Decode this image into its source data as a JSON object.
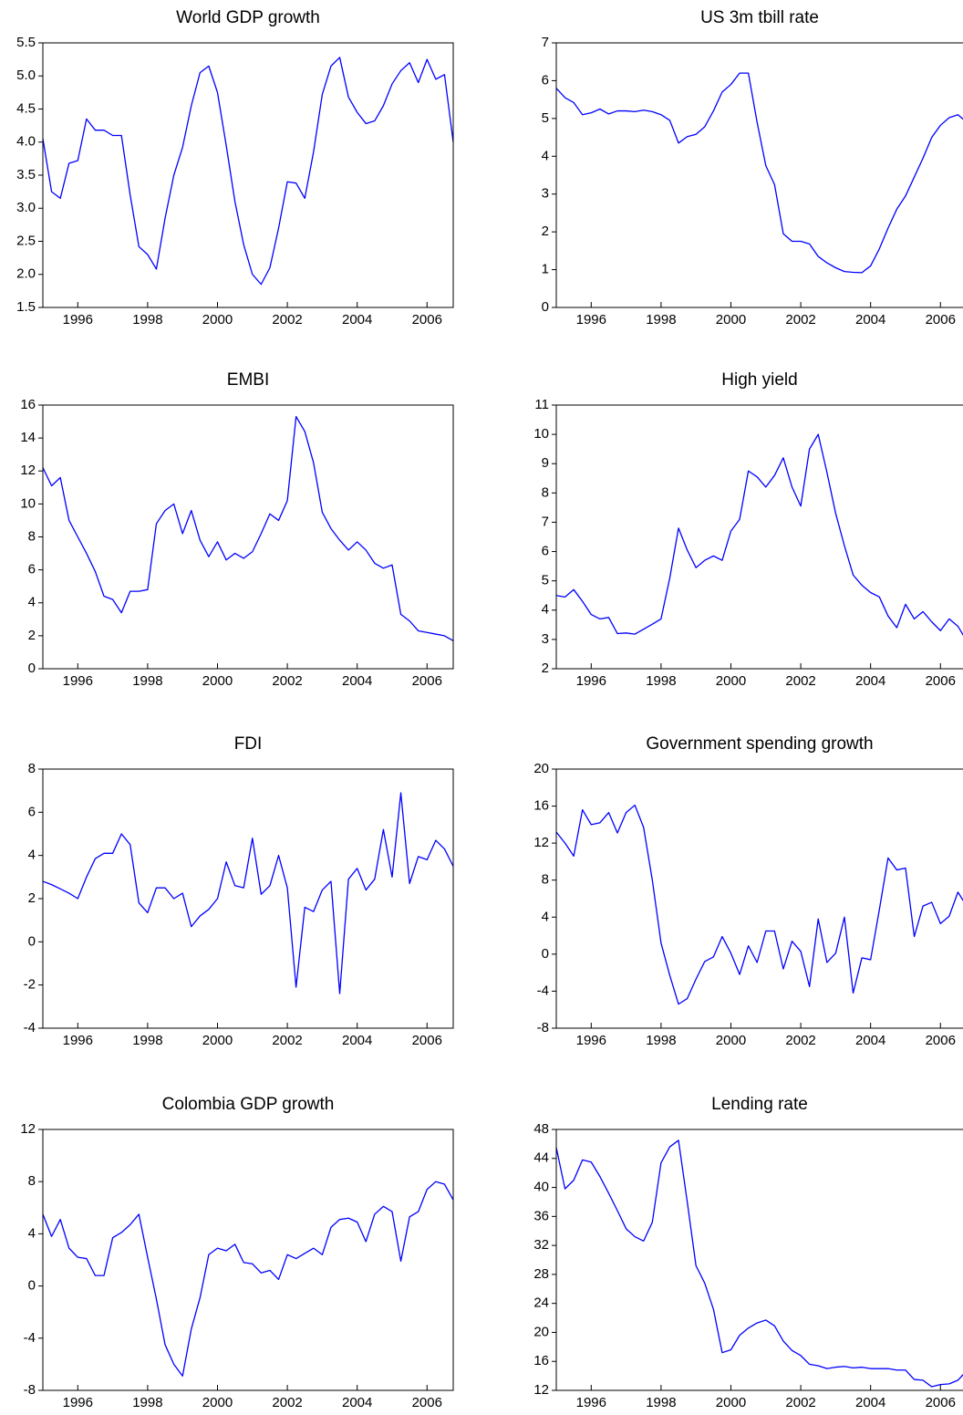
{
  "chart_data": [
    {
      "type": "line",
      "title": "World GDP growth",
      "color": "#0000ff",
      "x": [
        1995,
        1995.25,
        1995.5,
        1995.75,
        1996,
        1996.25,
        1996.5,
        1996.75,
        1997,
        1997.25,
        1997.5,
        1997.75,
        1998,
        1998.25,
        1998.5,
        1998.75,
        1999,
        1999.25,
        1999.5,
        1999.75,
        2000,
        2000.25,
        2000.5,
        2000.75,
        2001,
        2001.25,
        2001.5,
        2001.75,
        2002,
        2002.25,
        2002.5,
        2002.75,
        2003,
        2003.25,
        2003.5,
        2003.75,
        2004,
        2004.25,
        2004.5,
        2004.75,
        2005,
        2005.25,
        2005.5,
        2005.75,
        2006,
        2006.25,
        2006.5,
        2006.75
      ],
      "values": [
        4.05,
        3.25,
        3.15,
        3.68,
        3.72,
        4.35,
        4.18,
        4.18,
        4.1,
        4.1,
        3.2,
        2.42,
        2.3,
        2.08,
        2.85,
        3.5,
        3.92,
        4.55,
        5.05,
        5.15,
        4.75,
        3.95,
        3.1,
        2.45,
        2.0,
        1.85,
        2.1,
        2.7,
        3.4,
        3.38,
        3.15,
        3.85,
        4.72,
        5.15,
        5.28,
        4.68,
        4.45,
        4.28,
        4.32,
        4.55,
        4.88,
        5.08,
        5.2,
        4.9,
        5.25,
        4.95,
        5.02,
        4.0
      ],
      "xlim": [
        1995,
        2006.75
      ],
      "xticks": [
        1996,
        1998,
        2000,
        2002,
        2004,
        2006
      ],
      "ylim": [
        1.5,
        5.5
      ],
      "yticks": [
        1.5,
        {
          "value": 2,
          "label": "2.0"
        },
        2.5,
        {
          "value": 3,
          "label": "3.0"
        },
        3.5,
        {
          "value": 4,
          "label": "4.0"
        },
        4.5,
        {
          "value": 5,
          "label": "5.0"
        },
        5.5
      ]
    },
    {
      "type": "line",
      "title": "US 3m tbill rate",
      "color": "#0000ff",
      "x": [
        1995,
        1995.25,
        1995.5,
        1995.75,
        1996,
        1996.25,
        1996.5,
        1996.75,
        1997,
        1997.25,
        1997.5,
        1997.75,
        1998,
        1998.25,
        1998.5,
        1998.75,
        1999,
        1999.25,
        1999.5,
        1999.75,
        2000,
        2000.25,
        2000.5,
        2000.75,
        2001,
        2001.25,
        2001.5,
        2001.75,
        2002,
        2002.25,
        2002.5,
        2002.75,
        2003,
        2003.25,
        2003.5,
        2003.75,
        2004,
        2004.25,
        2004.5,
        2004.75,
        2005,
        2005.25,
        2005.5,
        2005.75,
        2006,
        2006.25,
        2006.5,
        2006.75
      ],
      "values": [
        5.8,
        5.55,
        5.42,
        5.1,
        5.15,
        5.25,
        5.12,
        5.2,
        5.2,
        5.18,
        5.22,
        5.18,
        5.1,
        4.95,
        4.35,
        4.52,
        4.58,
        4.78,
        5.2,
        5.7,
        5.9,
        6.2,
        6.2,
        4.9,
        3.75,
        3.25,
        1.95,
        1.75,
        1.75,
        1.68,
        1.35,
        1.18,
        1.05,
        0.95,
        0.93,
        0.92,
        1.1,
        1.55,
        2.1,
        2.6,
        2.95,
        3.45,
        3.95,
        4.5,
        4.82,
        5.02,
        5.1,
        4.9
      ],
      "xlim": [
        1995,
        2006.75
      ],
      "xticks": [
        1996,
        1998,
        2000,
        2002,
        2004,
        2006
      ],
      "ylim": [
        0,
        7
      ],
      "yticks": [
        0,
        1,
        2,
        3,
        4,
        5,
        6,
        7
      ]
    },
    {
      "type": "line",
      "title": "EMBI",
      "color": "#0000ff",
      "x": [
        1995,
        1995.25,
        1995.5,
        1995.75,
        1996,
        1996.25,
        1996.5,
        1996.75,
        1997,
        1997.25,
        1997.5,
        1997.75,
        1998,
        1998.25,
        1998.5,
        1998.75,
        1999,
        1999.25,
        1999.5,
        1999.75,
        2000,
        2000.25,
        2000.5,
        2000.75,
        2001,
        2001.25,
        2001.5,
        2001.75,
        2002,
        2002.25,
        2002.5,
        2002.75,
        2003,
        2003.25,
        2003.5,
        2003.75,
        2004,
        2004.25,
        2004.5,
        2004.75,
        2005,
        2005.25,
        2005.5,
        2005.75,
        2006,
        2006.25,
        2006.5,
        2006.75
      ],
      "values": [
        12.2,
        11.1,
        11.6,
        9.0,
        8.0,
        7.0,
        5.9,
        4.4,
        4.2,
        3.4,
        4.7,
        4.7,
        4.8,
        8.8,
        9.6,
        10.0,
        8.2,
        9.6,
        7.8,
        6.8,
        7.7,
        6.6,
        7.0,
        6.7,
        7.1,
        8.2,
        9.4,
        9.0,
        10.2,
        15.3,
        14.4,
        12.5,
        9.5,
        8.5,
        7.8,
        7.2,
        7.7,
        7.2,
        6.4,
        6.1,
        6.3,
        3.3,
        2.9,
        2.3,
        2.2,
        2.1,
        2.0,
        1.7
      ],
      "xlim": [
        1995,
        2006.75
      ],
      "xticks": [
        1996,
        1998,
        2000,
        2002,
        2004,
        2006
      ],
      "ylim": [
        0,
        16
      ],
      "yticks": [
        0,
        2,
        4,
        6,
        8,
        10,
        12,
        14,
        16
      ]
    },
    {
      "type": "line",
      "title": "High yield",
      "color": "#0000ff",
      "x": [
        1995,
        1995.25,
        1995.5,
        1995.75,
        1996,
        1996.25,
        1996.5,
        1996.75,
        1997,
        1997.25,
        1997.5,
        1997.75,
        1998,
        1998.25,
        1998.5,
        1998.75,
        1999,
        1999.25,
        1999.5,
        1999.75,
        2000,
        2000.25,
        2000.5,
        2000.75,
        2001,
        2001.25,
        2001.5,
        2001.75,
        2002,
        2002.25,
        2002.5,
        2002.75,
        2003,
        2003.25,
        2003.5,
        2003.75,
        2004,
        2004.25,
        2004.5,
        2004.75,
        2005,
        2005.25,
        2005.5,
        2005.75,
        2006,
        2006.25,
        2006.5,
        2006.75
      ],
      "values": [
        4.5,
        4.45,
        4.7,
        4.3,
        3.85,
        3.7,
        3.75,
        3.2,
        3.22,
        3.18,
        3.35,
        3.52,
        3.7,
        5.1,
        6.8,
        6.05,
        5.45,
        5.7,
        5.85,
        5.7,
        6.7,
        7.1,
        8.75,
        8.55,
        8.2,
        8.6,
        9.2,
        8.2,
        7.55,
        9.5,
        10.0,
        8.7,
        7.3,
        6.2,
        5.2,
        4.85,
        4.6,
        4.45,
        3.8,
        3.4,
        4.2,
        3.7,
        3.95,
        3.6,
        3.3,
        3.7,
        3.45,
        2.95
      ],
      "xlim": [
        1995,
        2006.75
      ],
      "xticks": [
        1996,
        1998,
        2000,
        2002,
        2004,
        2006
      ],
      "ylim": [
        2,
        11
      ],
      "yticks": [
        2,
        3,
        4,
        5,
        6,
        7,
        8,
        9,
        10,
        11
      ]
    },
    {
      "type": "line",
      "title": "FDI",
      "color": "#0000ff",
      "x": [
        1995,
        1995.25,
        1995.5,
        1995.75,
        1996,
        1996.25,
        1996.5,
        1996.75,
        1997,
        1997.25,
        1997.5,
        1997.75,
        1998,
        1998.25,
        1998.5,
        1998.75,
        1999,
        1999.25,
        1999.5,
        1999.75,
        2000,
        2000.25,
        2000.5,
        2000.75,
        2001,
        2001.25,
        2001.5,
        2001.75,
        2002,
        2002.25,
        2002.5,
        2002.75,
        2003,
        2003.25,
        2003.5,
        2003.75,
        2004,
        2004.25,
        2004.5,
        2004.75,
        2005,
        2005.25,
        2005.5,
        2005.75,
        2006,
        2006.25,
        2006.5,
        2006.75
      ],
      "values": [
        2.8,
        2.65,
        2.45,
        2.25,
        2.0,
        3.0,
        3.85,
        4.1,
        4.1,
        5.0,
        4.5,
        1.8,
        1.35,
        2.5,
        2.5,
        2.0,
        2.25,
        0.7,
        1.2,
        1.5,
        2.0,
        3.7,
        2.6,
        2.5,
        4.8,
        2.2,
        2.6,
        4.0,
        2.5,
        -2.1,
        1.6,
        1.4,
        2.4,
        2.8,
        -2.4,
        2.9,
        3.4,
        2.4,
        2.9,
        5.2,
        3.0,
        6.9,
        2.7,
        3.95,
        3.8,
        4.7,
        4.3,
        3.5
      ],
      "xlim": [
        1995,
        2006.75
      ],
      "xticks": [
        1996,
        1998,
        2000,
        2002,
        2004,
        2006
      ],
      "ylim": [
        -4,
        8
      ],
      "yticks": [
        -4,
        -2,
        0,
        2,
        4,
        6,
        8
      ]
    },
    {
      "type": "line",
      "title": "Government spending growth",
      "color": "#0000ff",
      "x": [
        1995,
        1995.25,
        1995.5,
        1995.75,
        1996,
        1996.25,
        1996.5,
        1996.75,
        1997,
        1997.25,
        1997.5,
        1997.75,
        1998,
        1998.25,
        1998.5,
        1998.75,
        1999,
        1999.25,
        1999.5,
        1999.75,
        2000,
        2000.25,
        2000.5,
        2000.75,
        2001,
        2001.25,
        2001.5,
        2001.75,
        2002,
        2002.25,
        2002.5,
        2002.75,
        2003,
        2003.25,
        2003.5,
        2003.75,
        2004,
        2004.25,
        2004.5,
        2004.75,
        2005,
        2005.25,
        2005.5,
        2005.75,
        2006,
        2006.25,
        2006.5,
        2006.75
      ],
      "values": [
        13.2,
        12,
        10.6,
        15.6,
        14,
        14.2,
        15.3,
        13.1,
        15.3,
        16.1,
        13.7,
        8.0,
        1.2,
        -2.3,
        -5.4,
        -4.8,
        -2.7,
        -0.8,
        -0.3,
        1.9,
        0.1,
        -2.2,
        0.9,
        -0.9,
        2.5,
        2.5,
        -1.6,
        1.4,
        0.3,
        -3.5,
        3.8,
        -0.9,
        0.1,
        4.0,
        -4.2,
        -0.4,
        -0.6,
        4.8,
        10.4,
        9.1,
        9.3,
        1.9,
        5.2,
        5.6,
        3.3,
        4.1,
        6.7,
        5.2
      ],
      "xlim": [
        1995,
        2006.75
      ],
      "xticks": [
        1996,
        1998,
        2000,
        2002,
        2004,
        2006
      ],
      "ylim": [
        -8,
        20
      ],
      "yticks": [
        -8,
        -4,
        0,
        4,
        8,
        12,
        16,
        20
      ]
    },
    {
      "type": "line",
      "title": "Colombia GDP growth",
      "color": "#0000ff",
      "x": [
        1995,
        1995.25,
        1995.5,
        1995.75,
        1996,
        1996.25,
        1996.5,
        1996.75,
        1997,
        1997.25,
        1997.5,
        1997.75,
        1998,
        1998.25,
        1998.5,
        1998.75,
        1999,
        1999.25,
        1999.5,
        1999.75,
        2000,
        2000.25,
        2000.5,
        2000.75,
        2001,
        2001.25,
        2001.5,
        2001.75,
        2002,
        2002.25,
        2002.5,
        2002.75,
        2003,
        2003.25,
        2003.5,
        2003.75,
        2004,
        2004.25,
        2004.5,
        2004.75,
        2005,
        2005.25,
        2005.5,
        2005.75,
        2006,
        2006.25,
        2006.5,
        2006.75
      ],
      "values": [
        5.5,
        3.8,
        5.1,
        2.9,
        2.2,
        2.1,
        0.8,
        0.8,
        3.7,
        4.1,
        4.7,
        5.5,
        2.2,
        -1.0,
        -4.5,
        -6.0,
        -6.9,
        -3.3,
        -0.9,
        2.4,
        2.9,
        2.7,
        3.2,
        1.8,
        1.7,
        1.0,
        1.2,
        0.5,
        2.4,
        2.1,
        2.5,
        2.9,
        2.4,
        4.5,
        5.1,
        5.2,
        4.9,
        3.4,
        5.5,
        6.1,
        5.7,
        1.9,
        5.3,
        5.7,
        7.4,
        8.0,
        7.8,
        6.6
      ],
      "xlim": [
        1995,
        2006.75
      ],
      "xticks": [
        1996,
        1998,
        2000,
        2002,
        2004,
        2006
      ],
      "ylim": [
        -8,
        12
      ],
      "yticks": [
        -8,
        -4,
        0,
        4,
        8,
        12
      ]
    },
    {
      "type": "line",
      "title": "Lending rate",
      "color": "#0000ff",
      "x": [
        1995,
        1995.25,
        1995.5,
        1995.75,
        1996,
        1996.25,
        1996.5,
        1996.75,
        1997,
        1997.25,
        1997.5,
        1997.75,
        1998,
        1998.25,
        1998.5,
        1998.75,
        1999,
        1999.25,
        1999.5,
        1999.75,
        2000,
        2000.25,
        2000.5,
        2000.75,
        2001,
        2001.25,
        2001.5,
        2001.75,
        2002,
        2002.25,
        2002.5,
        2002.75,
        2003,
        2003.25,
        2003.5,
        2003.75,
        2004,
        2004.25,
        2004.5,
        2004.75,
        2005,
        2005.25,
        2005.5,
        2005.75,
        2006,
        2006.25,
        2006.5,
        2006.75
      ],
      "values": [
        45.5,
        39.8,
        41,
        43.8,
        43.5,
        41.5,
        39.2,
        36.8,
        34.3,
        33.2,
        32.6,
        35.2,
        43.4,
        45.6,
        46.5,
        38,
        29.2,
        26.8,
        23.2,
        17.2,
        17.6,
        19.6,
        20.6,
        21.3,
        21.7,
        20.9,
        18.8,
        17.5,
        16.8,
        15.6,
        15.4,
        15.0,
        15.2,
        15.3,
        15.1,
        15.2,
        15.0,
        15.0,
        15.0,
        14.8,
        14.8,
        13.5,
        13.4,
        12.5,
        12.8,
        12.9,
        13.4,
        14.7
      ],
      "xlim": [
        1995,
        2006.75
      ],
      "xticks": [
        1996,
        1998,
        2000,
        2002,
        2004,
        2006
      ],
      "ylim": [
        12,
        48
      ],
      "yticks": [
        12,
        16,
        20,
        24,
        28,
        32,
        36,
        40,
        44,
        48
      ]
    }
  ]
}
